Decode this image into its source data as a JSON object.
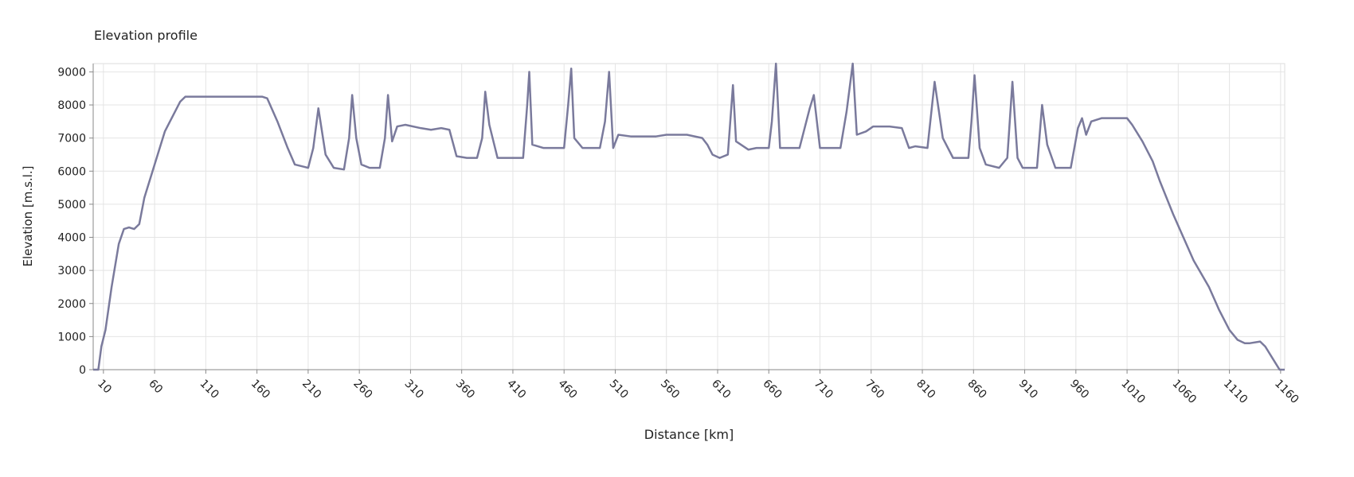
{
  "chart_data": {
    "type": "line",
    "title": "Elevation profile",
    "x_label": "Distance [km]",
    "y_label": "Elevation [m.s.l.]",
    "xlim": [
      0,
      1164
    ],
    "ylim": [
      0,
      9250
    ],
    "xticks": [
      10,
      60,
      110,
      160,
      210,
      260,
      310,
      360,
      410,
      460,
      510,
      560,
      610,
      660,
      710,
      760,
      810,
      860,
      910,
      960,
      1010,
      1060,
      1110,
      1160
    ],
    "yticks": [
      0,
      1000,
      2000,
      3000,
      4000,
      5000,
      6000,
      7000,
      8000,
      9000
    ],
    "grid": true,
    "x": [
      0,
      5,
      8,
      12,
      18,
      25,
      30,
      35,
      40,
      45,
      50,
      60,
      70,
      80,
      85,
      90,
      100,
      165,
      170,
      180,
      190,
      197,
      210,
      215,
      220,
      227,
      235,
      245,
      250,
      253,
      257,
      262,
      270,
      280,
      285,
      288,
      292,
      297,
      305,
      320,
      330,
      340,
      348,
      355,
      365,
      375,
      380,
      383,
      387,
      395,
      420,
      424,
      426,
      429,
      440,
      460,
      464,
      467,
      470,
      478,
      495,
      500,
      504,
      508,
      513,
      525,
      550,
      560,
      580,
      595,
      600,
      605,
      612,
      620,
      625,
      628,
      640,
      648,
      660,
      663,
      667,
      671,
      690,
      700,
      704,
      710,
      730,
      736,
      742,
      746,
      755,
      762,
      778,
      790,
      797,
      803,
      815,
      822,
      830,
      840,
      855,
      858,
      861,
      866,
      872,
      885,
      893,
      898,
      903,
      908,
      922,
      927,
      932,
      940,
      955,
      962,
      966,
      970,
      975,
      985,
      1010,
      1015,
      1025,
      1035,
      1042,
      1055,
      1065,
      1075,
      1090,
      1100,
      1110,
      1118,
      1125,
      1130,
      1140,
      1145,
      1155,
      1159,
      1164
    ],
    "series": [
      {
        "name": "Elevation",
        "color": "#7a7a9c",
        "values": [
          0,
          0,
          700,
          1200,
          2500,
          3800,
          4250,
          4300,
          4250,
          4400,
          5200,
          6200,
          7200,
          7800,
          8100,
          8250,
          8250,
          8250,
          8200,
          7500,
          6700,
          6200,
          6100,
          6700,
          7900,
          6500,
          6100,
          6050,
          7000,
          8300,
          7000,
          6200,
          6100,
          6100,
          7000,
          8300,
          6900,
          7350,
          7400,
          7300,
          7250,
          7300,
          7250,
          6450,
          6400,
          6400,
          7000,
          8400,
          7400,
          6400,
          6400,
          8000,
          9000,
          6800,
          6700,
          6700,
          8000,
          9100,
          7000,
          6700,
          6700,
          7500,
          9000,
          6700,
          7100,
          7050,
          7050,
          7100,
          7100,
          7000,
          6800,
          6500,
          6400,
          6500,
          8600,
          6900,
          6650,
          6700,
          6700,
          7500,
          9250,
          6700,
          6700,
          7900,
          8300,
          6700,
          6700,
          7800,
          9250,
          7100,
          7200,
          7350,
          7350,
          7300,
          6700,
          6750,
          6700,
          8700,
          7000,
          6400,
          6400,
          7500,
          8900,
          6700,
          6200,
          6100,
          6400,
          8700,
          6400,
          6100,
          6100,
          8000,
          6800,
          6100,
          6100,
          7300,
          7600,
          7100,
          7500,
          7600,
          7600,
          7400,
          6900,
          6300,
          5700,
          4700,
          4000,
          3300,
          2500,
          1800,
          1200,
          900,
          800,
          800,
          850,
          700,
          200,
          0,
          0
        ]
      }
    ]
  }
}
